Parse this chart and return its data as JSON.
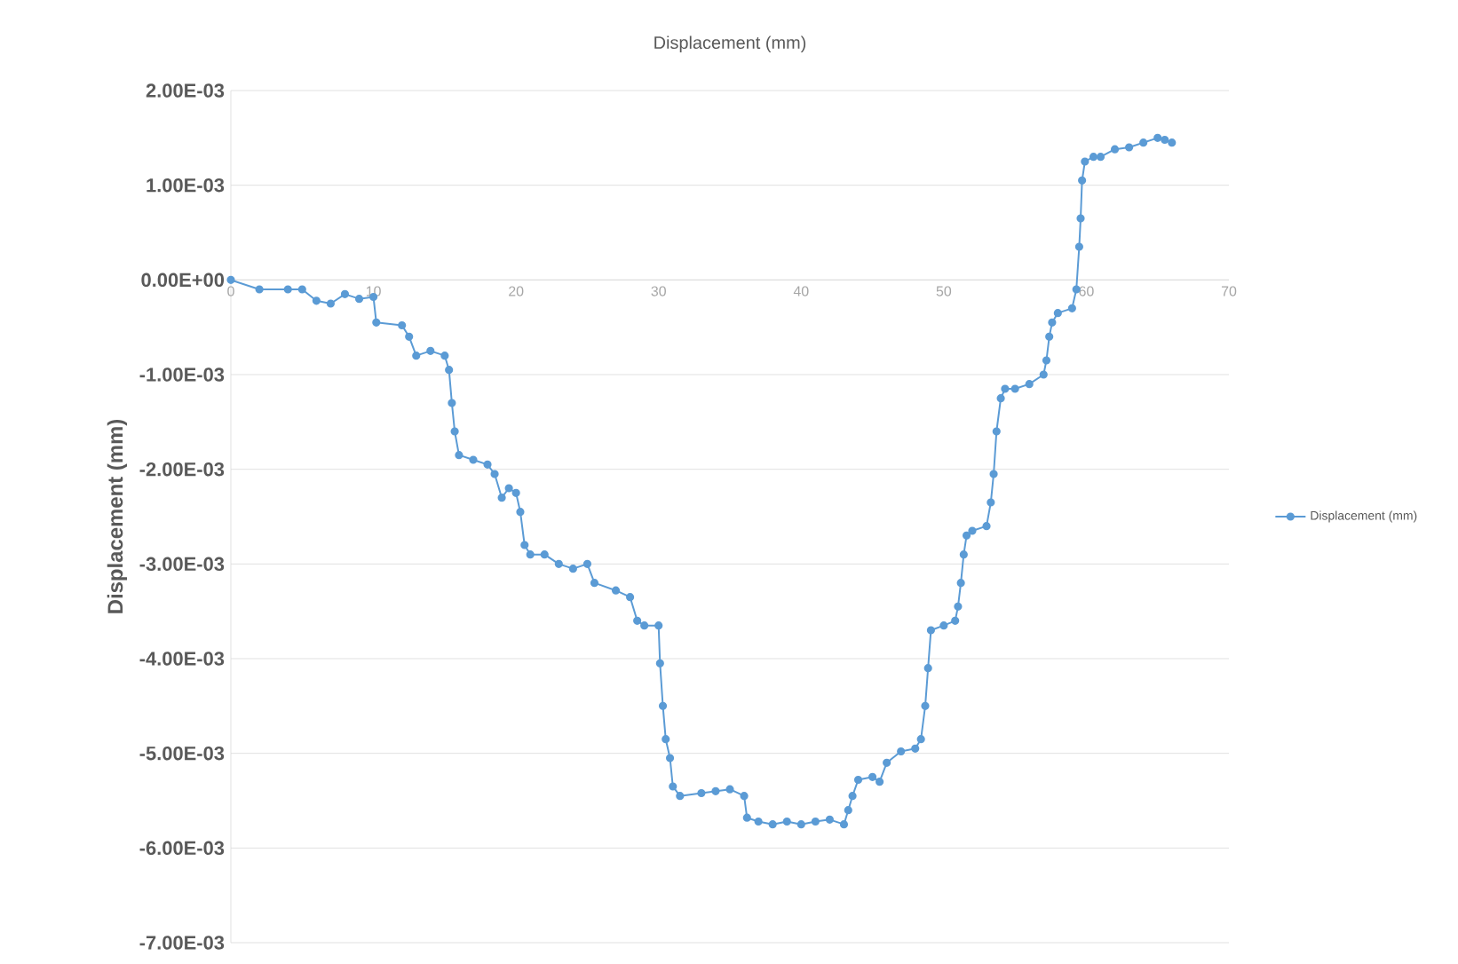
{
  "chart_data": {
    "type": "line",
    "title": "Displacement (mm)",
    "ylabel": "Displacement (mm)",
    "x": [
      0,
      2,
      4,
      5,
      6,
      7,
      8,
      9,
      10,
      10.2,
      12,
      12.5,
      13,
      14,
      15,
      15.3,
      15.5,
      15.7,
      16,
      17,
      18,
      18.5,
      19,
      19.5,
      20,
      20.3,
      20.6,
      21,
      22,
      23,
      24,
      25,
      25.5,
      27,
      28,
      28.5,
      29,
      30,
      30.1,
      30.3,
      30.5,
      30.8,
      31,
      31.5,
      33,
      34,
      35,
      36,
      36.2,
      37,
      38,
      39,
      40,
      41,
      42,
      43,
      43.3,
      43.6,
      44,
      45,
      45.5,
      46,
      47,
      48,
      48.4,
      48.7,
      48.9,
      49.1,
      50,
      50.8,
      51,
      51.2,
      51.4,
      51.6,
      52,
      53,
      53.3,
      53.5,
      53.7,
      54,
      54.3,
      55,
      56,
      57,
      57.2,
      57.4,
      57.6,
      58,
      59,
      59.3,
      59.5,
      59.6,
      59.7,
      59.9,
      60.5,
      61,
      62,
      63,
      64,
      65,
      65.5,
      66
    ],
    "series": [
      {
        "name": "Displacement (mm)",
        "color": "#5b9bd5",
        "values": [
          0,
          -0.0001,
          -0.0001,
          -0.0001,
          -0.00022,
          -0.00025,
          -0.00015,
          -0.0002,
          -0.00018,
          -0.00045,
          -0.00048,
          -0.0006,
          -0.0008,
          -0.00075,
          -0.0008,
          -0.00095,
          -0.0013,
          -0.0016,
          -0.00185,
          -0.0019,
          -0.00195,
          -0.00205,
          -0.0023,
          -0.0022,
          -0.00225,
          -0.00245,
          -0.0028,
          -0.0029,
          -0.0029,
          -0.003,
          -0.00305,
          -0.003,
          -0.0032,
          -0.00328,
          -0.00335,
          -0.0036,
          -0.00365,
          -0.00365,
          -0.00405,
          -0.0045,
          -0.00485,
          -0.00505,
          -0.00535,
          -0.00545,
          -0.00542,
          -0.0054,
          -0.00538,
          -0.00545,
          -0.00568,
          -0.00572,
          -0.00575,
          -0.00572,
          -0.00575,
          -0.00572,
          -0.0057,
          -0.00575,
          -0.0056,
          -0.00545,
          -0.00528,
          -0.00525,
          -0.0053,
          -0.0051,
          -0.00498,
          -0.00495,
          -0.00485,
          -0.0045,
          -0.0041,
          -0.0037,
          -0.00365,
          -0.0036,
          -0.00345,
          -0.0032,
          -0.0029,
          -0.0027,
          -0.00265,
          -0.0026,
          -0.00235,
          -0.00205,
          -0.0016,
          -0.00125,
          -0.00115,
          -0.00115,
          -0.0011,
          -0.001,
          -0.00085,
          -0.0006,
          -0.00045,
          -0.00035,
          -0.0003,
          -0.0001,
          0.00035,
          0.00065,
          0.00105,
          0.00125,
          0.0013,
          0.0013,
          0.00138,
          0.0014,
          0.00145,
          0.0015,
          0.00148,
          0.00145
        ]
      }
    ],
    "xlim": [
      0,
      70
    ],
    "xticks": [
      0,
      10,
      20,
      30,
      40,
      50,
      60,
      70
    ],
    "ylim": [
      -0.007,
      0.002
    ],
    "yticks": [
      {
        "value": 0.002,
        "label": "2.00E-03"
      },
      {
        "value": 0.001,
        "label": "1.00E-03"
      },
      {
        "value": 0,
        "label": "0.00E+00"
      },
      {
        "value": -0.001,
        "label": "-1.00E-03"
      },
      {
        "value": -0.002,
        "label": "-2.00E-03"
      },
      {
        "value": -0.003,
        "label": "-3.00E-03"
      },
      {
        "value": -0.004,
        "label": "-4.00E-03"
      },
      {
        "value": -0.005,
        "label": "-5.00E-03"
      },
      {
        "value": -0.006,
        "label": "-6.00E-03"
      },
      {
        "value": -0.007,
        "label": "-7.00E-03"
      }
    ],
    "grid": "y",
    "legend": "right",
    "marker": "circle",
    "line_style": "solid"
  }
}
